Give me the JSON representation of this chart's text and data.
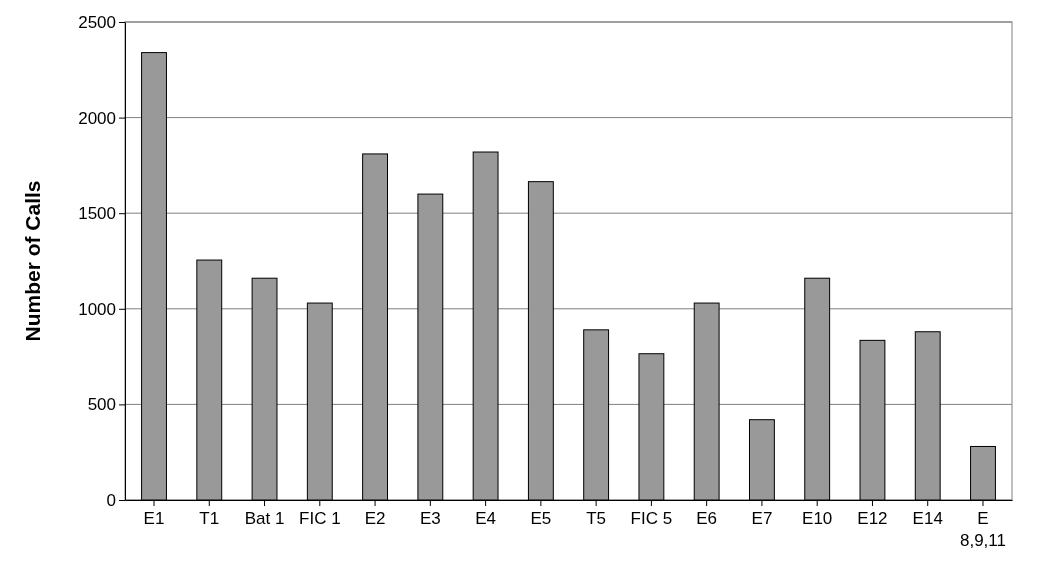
{
  "chart_data": {
    "type": "bar",
    "ylabel": "Number of Calls",
    "categories": [
      "E1",
      "T1",
      "Bat 1",
      "FIC 1",
      "E2",
      "E3",
      "E4",
      "E5",
      "T5",
      "FIC 5",
      "E6",
      "E7",
      "E10",
      "E12",
      "E14",
      "E 8,9,11"
    ],
    "values": [
      2340,
      1255,
      1160,
      1030,
      1810,
      1600,
      1820,
      1665,
      890,
      765,
      1030,
      420,
      1160,
      835,
      880,
      280
    ],
    "color": "#999999",
    "ylim": [
      0,
      2500
    ],
    "yticks": [
      0,
      500,
      1000,
      1500,
      2000,
      2500
    ],
    "grid": "y"
  }
}
